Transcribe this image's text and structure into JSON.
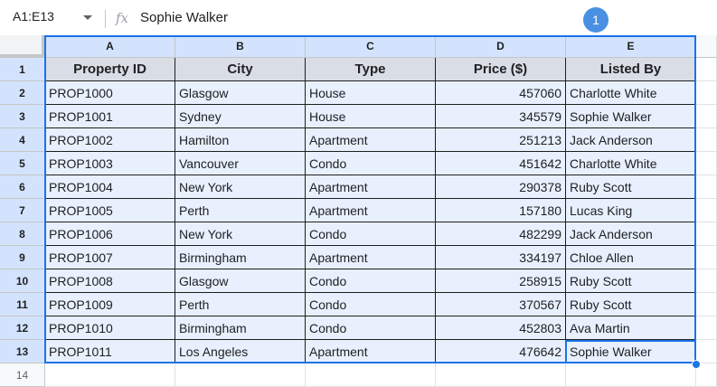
{
  "formula_bar": {
    "name_box": "A1:E13",
    "fx": "fx",
    "formula": "Sophie Walker",
    "badge": "1"
  },
  "columns": [
    "A",
    "B",
    "C",
    "D",
    "E"
  ],
  "rows": [
    "1",
    "2",
    "3",
    "4",
    "5",
    "6",
    "7",
    "8",
    "9",
    "10",
    "11",
    "12",
    "13",
    "14"
  ],
  "table": {
    "headers": [
      "Property ID",
      "City",
      "Type",
      "Price ($)",
      "Listed By"
    ],
    "data": [
      [
        "PROP1000",
        "Glasgow",
        "House",
        "457060",
        "Charlotte White"
      ],
      [
        "PROP1001",
        "Sydney",
        "House",
        "345579",
        "Sophie Walker"
      ],
      [
        "PROP1002",
        "Hamilton",
        "Apartment",
        "251213",
        "Jack Anderson"
      ],
      [
        "PROP1003",
        "Vancouver",
        "Condo",
        "451642",
        "Charlotte White"
      ],
      [
        "PROP1004",
        "New York",
        "Apartment",
        "290378",
        "Ruby Scott"
      ],
      [
        "PROP1005",
        "Perth",
        "Apartment",
        "157180",
        "Lucas King"
      ],
      [
        "PROP1006",
        "New York",
        "Condo",
        "482299",
        "Jack Anderson"
      ],
      [
        "PROP1007",
        "Birmingham",
        "Apartment",
        "334197",
        "Chloe Allen"
      ],
      [
        "PROP1008",
        "Glasgow",
        "Condo",
        "258915",
        "Ruby Scott"
      ],
      [
        "PROP1009",
        "Perth",
        "Condo",
        "370567",
        "Ruby Scott"
      ],
      [
        "PROP1010",
        "Birmingham",
        "Condo",
        "452803",
        "Ava Martin"
      ],
      [
        "PROP1011",
        "Los Angeles",
        "Apartment",
        "476642",
        "Sophie Walker"
      ]
    ]
  }
}
